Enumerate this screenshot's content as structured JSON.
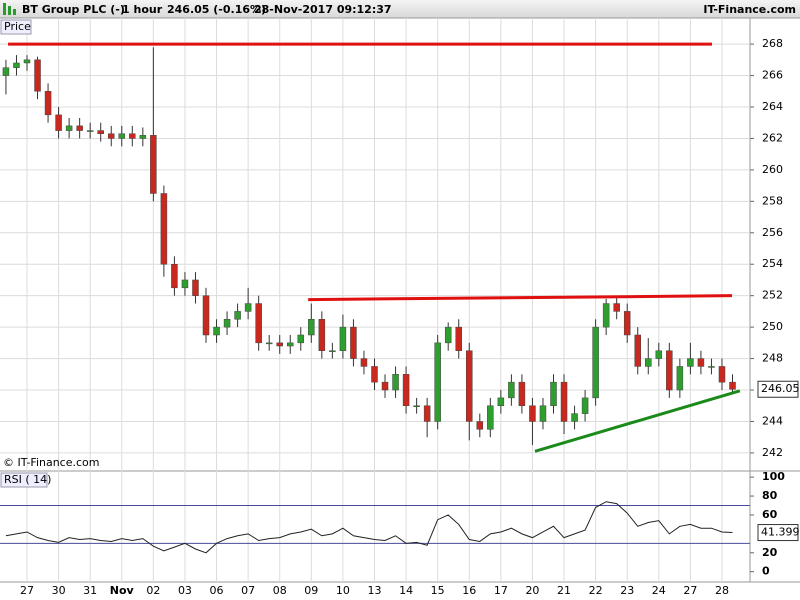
{
  "header": {
    "instrument": "BT Group PLC (-)",
    "interval": "1 hour",
    "quote": "246.05 (-0.16%)",
    "timestamp": "28-Nov-2017 09:12:37",
    "brand": "IT-Finance.com",
    "watermark": "© IT-Finance.com"
  },
  "chart_data": [
    {
      "type": "candlestick",
      "label": "Price",
      "categories": [
        null,
        null,
        "27",
        null,
        null,
        "30",
        null,
        null,
        "31",
        null,
        null,
        "Nov",
        null,
        null,
        "02",
        null,
        null,
        "03",
        null,
        null,
        "06",
        null,
        null,
        "07",
        null,
        null,
        "08",
        null,
        null,
        "09",
        null,
        null,
        "10",
        null,
        null,
        "13",
        null,
        null,
        "14",
        null,
        null,
        "15",
        null,
        null,
        "16",
        null,
        null,
        "17",
        null,
        null,
        "20",
        null,
        null,
        "21",
        null,
        null,
        "22",
        null,
        null,
        "23",
        null,
        null,
        "24",
        null,
        null,
        "27",
        null,
        null,
        "28",
        null
      ],
      "open": [
        266,
        266.5,
        266.8,
        267,
        265,
        263.5,
        262.5,
        262.8,
        262.5,
        262.5,
        262.3,
        262,
        262.3,
        262,
        262.2,
        258.5,
        254,
        252.5,
        253,
        252,
        249.5,
        250,
        250.5,
        251,
        251.5,
        249,
        249,
        248.8,
        249,
        249.5,
        250.5,
        248.5,
        248.5,
        250,
        248,
        247.5,
        246.5,
        246,
        247,
        245,
        245,
        244,
        249,
        250,
        248.5,
        244,
        243.5,
        245,
        245.5,
        246.5,
        245,
        244,
        245,
        246.5,
        244,
        244.5,
        245.5,
        250,
        251.5,
        251,
        249.5,
        247.5,
        248,
        248.5,
        246,
        247.5,
        248,
        247.5,
        247.5,
        246.5
      ],
      "high": [
        267,
        267.3,
        267.3,
        267.2,
        265.5,
        264,
        263.3,
        263.3,
        263,
        263,
        262.8,
        262.8,
        262.8,
        262.7,
        267.8,
        259,
        254.5,
        253.5,
        253.5,
        252.5,
        250.5,
        251,
        251.5,
        252.5,
        252,
        249.5,
        249.5,
        249.5,
        250,
        251.5,
        251,
        249,
        250.8,
        250.5,
        248.5,
        248,
        247,
        247.5,
        247.5,
        245.5,
        245.5,
        249.5,
        250.3,
        250.5,
        249,
        244.5,
        245.5,
        246,
        247,
        247,
        245.5,
        245.5,
        247,
        247,
        245,
        246,
        250.5,
        251.8,
        251.9,
        251.5,
        250,
        249.3,
        249,
        249,
        248,
        249,
        248.5,
        248,
        248,
        247
      ],
      "low": [
        264.8,
        266,
        266.3,
        264.5,
        263,
        262,
        262,
        262,
        262,
        261.8,
        261.5,
        261.5,
        261.5,
        261.5,
        258,
        253.2,
        252,
        252,
        251.5,
        249,
        249,
        249.5,
        250,
        250.5,
        248.5,
        248.5,
        248.3,
        248.3,
        248.5,
        249,
        248,
        248,
        248,
        247.5,
        247,
        246,
        245.5,
        245.5,
        244.5,
        244.5,
        243,
        243.5,
        248.5,
        248,
        242.8,
        243,
        243,
        244.5,
        245,
        244.5,
        242.5,
        243.5,
        244.5,
        243.2,
        243.5,
        244,
        245,
        249.5,
        250.5,
        249,
        247,
        247,
        247.5,
        245.5,
        245.5,
        247,
        247,
        247,
        246,
        245.8
      ],
      "close": [
        266.5,
        266.8,
        267,
        265,
        263.5,
        262.5,
        262.8,
        262.5,
        262.5,
        262.3,
        262,
        262.3,
        262,
        262.2,
        258.5,
        254,
        252.5,
        253,
        252,
        249.5,
        250,
        250.5,
        251,
        251.5,
        249,
        249,
        248.8,
        249,
        249.5,
        250.5,
        248.5,
        248.5,
        250,
        248,
        247.5,
        246.5,
        246,
        247,
        245,
        245,
        244,
        249,
        250,
        248.5,
        244,
        243.5,
        245,
        245.5,
        246.5,
        245,
        244,
        245,
        246.5,
        244,
        244.5,
        245.5,
        250,
        251.5,
        251,
        249.5,
        247.5,
        248,
        248.5,
        246,
        247.5,
        248,
        247.5,
        247.5,
        246.5,
        246.05
      ],
      "up_color": "#2e9e2e",
      "down_color": "#c8281e",
      "wick_color": "#333333",
      "ylim": [
        240.85,
        269.66
      ],
      "yticks": [
        242,
        244,
        246,
        248,
        250,
        252,
        254,
        256,
        258,
        260,
        262,
        264,
        266,
        268
      ],
      "grid": true,
      "annotations": [
        {
          "x": [
            0.2,
            67.05
          ],
          "y": [
            268,
            268
          ],
          "color": "#e01010"
        },
        {
          "x": [
            28.7,
            68.95
          ],
          "y": [
            251.75,
            252.0
          ],
          "color": "#e01010"
        },
        {
          "x": [
            50.24,
            69.7
          ],
          "y": [
            242.1,
            245.95
          ],
          "color": "#1a8a1a"
        }
      ]
    },
    {
      "type": "line",
      "label": "RSI ( 14)",
      "color": "#222222",
      "values": [
        38,
        40,
        42,
        36,
        33,
        31,
        36,
        34,
        35,
        33,
        32,
        35,
        33,
        35,
        27,
        22,
        26,
        30,
        24,
        20,
        30,
        35,
        38,
        40,
        33,
        35,
        36,
        40,
        42,
        45,
        38,
        40,
        46,
        38,
        36,
        34,
        33,
        38,
        30,
        31,
        28,
        55,
        60,
        50,
        34,
        32,
        40,
        42,
        46,
        40,
        36,
        42,
        48,
        36,
        40,
        44,
        68,
        74,
        72,
        62,
        48,
        52,
        54,
        40,
        48,
        50,
        46,
        46,
        42,
        41.399
      ],
      "ylim": [
        -10.9,
        106.5
      ],
      "yticks": [
        0,
        20,
        60,
        80,
        100
      ],
      "levels": [
        70,
        30
      ],
      "level_color": "#4a4a9a"
    }
  ]
}
